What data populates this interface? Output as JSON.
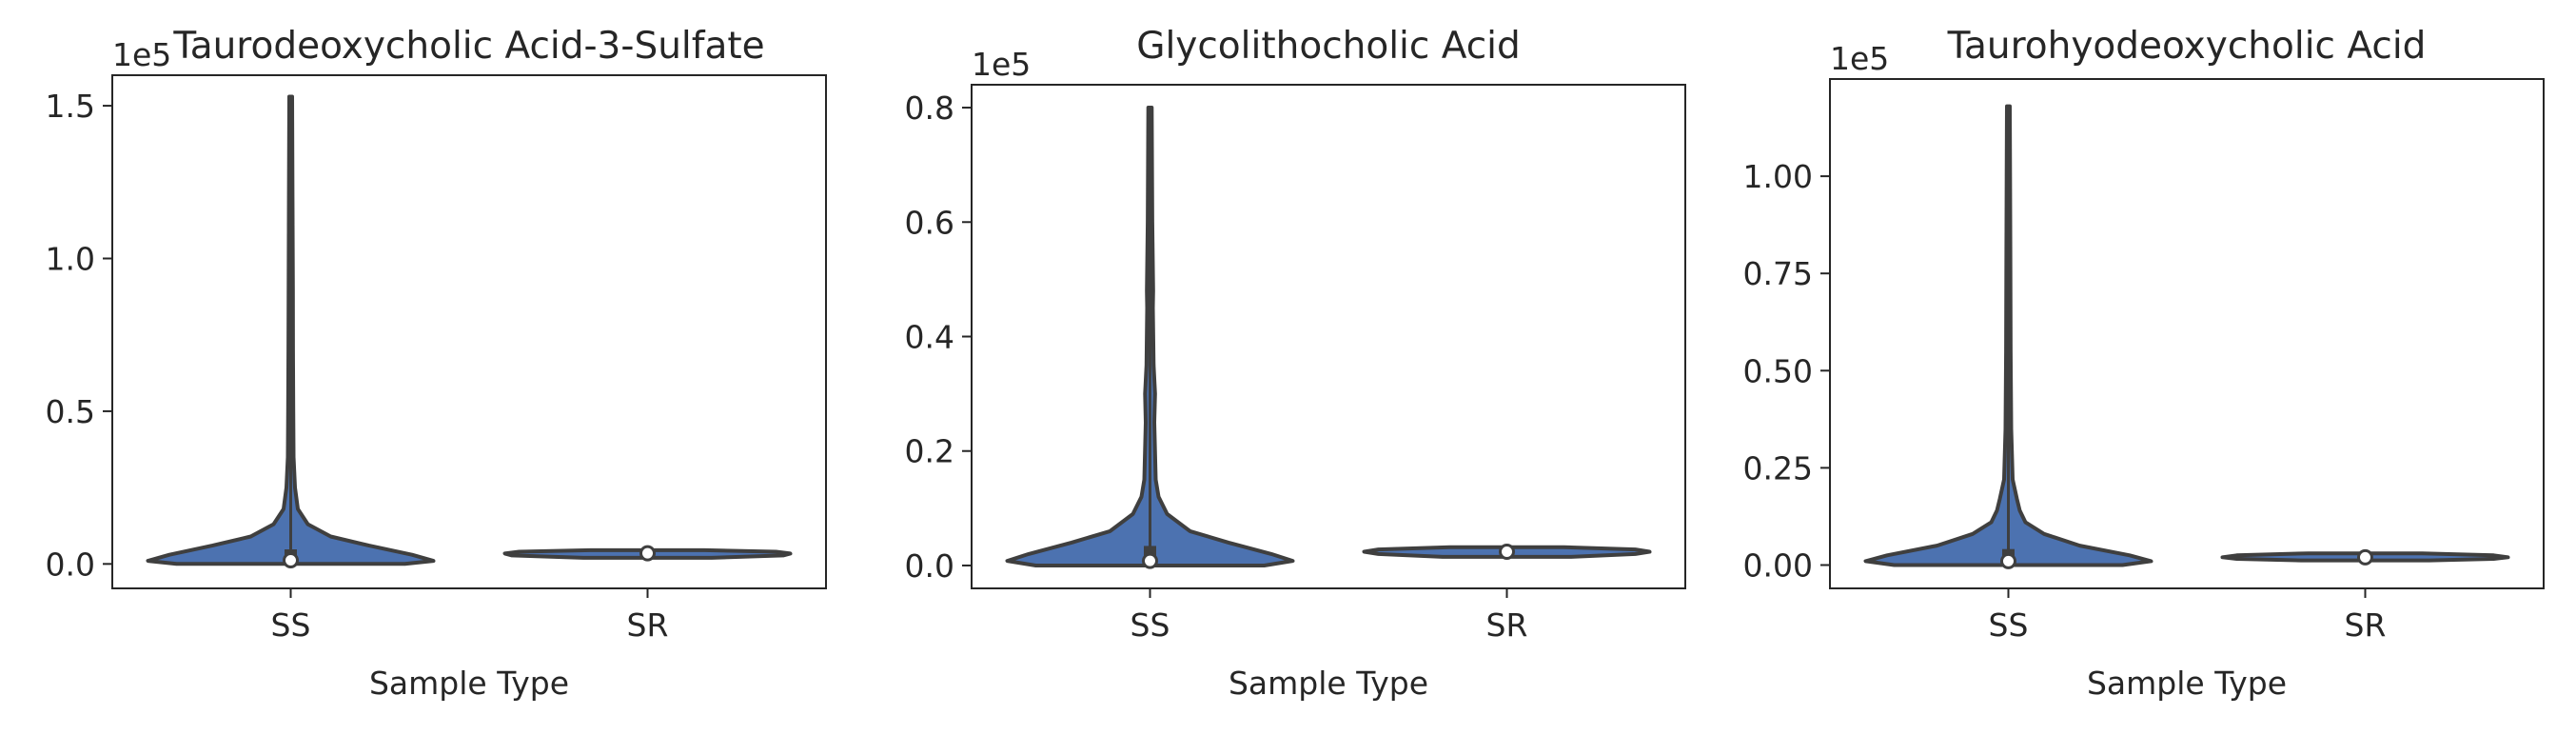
{
  "figure": {
    "violin_color": "#4c72b0",
    "edge_color": "#3f3f3f",
    "xlabel": "Sample Type"
  },
  "chart_data": [
    {
      "type": "violin",
      "title": "Taurodeoxycholic Acid-3-Sulfate",
      "xlabel": "Sample Type",
      "ylabel": "",
      "scale_label": "1e5",
      "categories": [
        "SS",
        "SR"
      ],
      "ylim": [
        -0.08,
        1.6
      ],
      "yticks": [
        0.0,
        0.5,
        1.0,
        1.5
      ],
      "ytick_labels": [
        "0.0",
        "0.5",
        "1.0",
        "1.5"
      ],
      "series": [
        {
          "category": "SS",
          "min": 0.0,
          "max": 1.53,
          "q1": 0.003,
          "median": 0.012,
          "q3": 0.04,
          "density": [
            [
              0.0,
              0.8
            ],
            [
              0.01,
              1.0
            ],
            [
              0.03,
              0.85
            ],
            [
              0.06,
              0.55
            ],
            [
              0.09,
              0.28
            ],
            [
              0.13,
              0.12
            ],
            [
              0.18,
              0.05
            ],
            [
              0.25,
              0.03
            ],
            [
              0.35,
              0.02
            ],
            [
              0.5,
              0.018
            ],
            [
              0.7,
              0.016
            ],
            [
              0.9,
              0.015
            ],
            [
              1.2,
              0.013
            ],
            [
              1.53,
              0.01
            ]
          ]
        },
        {
          "category": "SR",
          "min": 0.02,
          "max": 0.045,
          "q1": 0.028,
          "median": 0.035,
          "q3": 0.04,
          "density": [
            [
              0.02,
              0.45
            ],
            [
              0.028,
              0.95
            ],
            [
              0.034,
              1.0
            ],
            [
              0.04,
              0.9
            ],
            [
              0.045,
              0.4
            ]
          ]
        }
      ]
    },
    {
      "type": "violin",
      "title": "Glycolithocholic Acid",
      "xlabel": "Sample Type",
      "ylabel": "",
      "scale_label": "1e5",
      "categories": [
        "SS",
        "SR"
      ],
      "ylim": [
        -0.04,
        0.84
      ],
      "yticks": [
        0.0,
        0.2,
        0.4,
        0.6,
        0.8
      ],
      "ytick_labels": [
        "0.0",
        "0.2",
        "0.4",
        "0.6",
        "0.8"
      ],
      "series": [
        {
          "category": "SS",
          "min": 0.0,
          "max": 0.8,
          "q1": 0.002,
          "median": 0.008,
          "q3": 0.03,
          "density": [
            [
              0.0,
              0.8
            ],
            [
              0.008,
              1.0
            ],
            [
              0.02,
              0.85
            ],
            [
              0.04,
              0.55
            ],
            [
              0.06,
              0.28
            ],
            [
              0.09,
              0.12
            ],
            [
              0.12,
              0.06
            ],
            [
              0.15,
              0.04
            ],
            [
              0.25,
              0.03
            ],
            [
              0.3,
              0.035
            ],
            [
              0.35,
              0.025
            ],
            [
              0.45,
              0.02
            ],
            [
              0.48,
              0.022
            ],
            [
              0.6,
              0.016
            ],
            [
              0.8,
              0.012
            ]
          ]
        },
        {
          "category": "SR",
          "min": 0.015,
          "max": 0.032,
          "q1": 0.02,
          "median": 0.024,
          "q3": 0.028,
          "density": [
            [
              0.015,
              0.45
            ],
            [
              0.02,
              0.9
            ],
            [
              0.024,
              1.0
            ],
            [
              0.028,
              0.9
            ],
            [
              0.032,
              0.4
            ]
          ]
        }
      ]
    },
    {
      "type": "violin",
      "title": "Taurohyodeoxycholic Acid",
      "xlabel": "Sample Type",
      "ylabel": "",
      "scale_label": "1e5",
      "categories": [
        "SS",
        "SR"
      ],
      "ylim": [
        -0.06,
        1.25
      ],
      "yticks": [
        0.0,
        0.25,
        0.5,
        0.75,
        1.0
      ],
      "ytick_labels": [
        "0.00",
        "0.25",
        "0.50",
        "0.75",
        "1.00"
      ],
      "series": [
        {
          "category": "SS",
          "min": 0.0,
          "max": 1.18,
          "q1": 0.002,
          "median": 0.01,
          "q3": 0.035,
          "density": [
            [
              0.0,
              0.8
            ],
            [
              0.01,
              1.0
            ],
            [
              0.025,
              0.85
            ],
            [
              0.05,
              0.5
            ],
            [
              0.08,
              0.25
            ],
            [
              0.11,
              0.12
            ],
            [
              0.14,
              0.08
            ],
            [
              0.17,
              0.06
            ],
            [
              0.22,
              0.03
            ],
            [
              0.35,
              0.02
            ],
            [
              0.55,
              0.016
            ],
            [
              0.8,
              0.014
            ],
            [
              1.0,
              0.012
            ],
            [
              1.18,
              0.01
            ]
          ]
        },
        {
          "category": "SR",
          "min": 0.012,
          "max": 0.03,
          "q1": 0.016,
          "median": 0.02,
          "q3": 0.025,
          "density": [
            [
              0.012,
              0.45
            ],
            [
              0.016,
              0.9
            ],
            [
              0.02,
              1.0
            ],
            [
              0.025,
              0.9
            ],
            [
              0.03,
              0.4
            ]
          ]
        }
      ]
    }
  ]
}
